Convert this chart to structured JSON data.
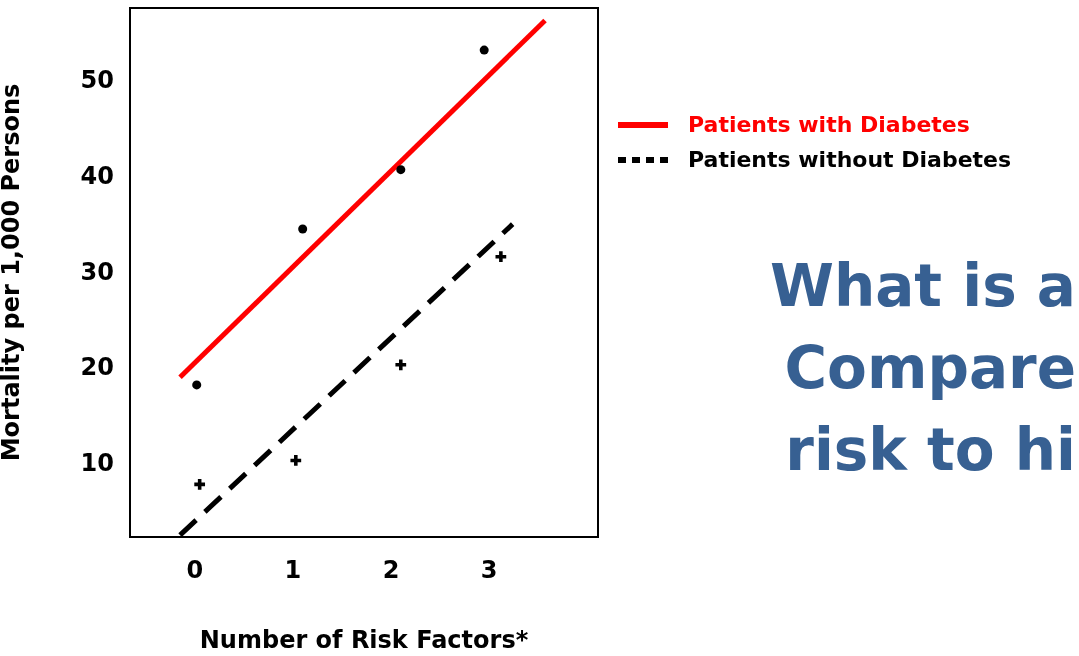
{
  "chart_data": {
    "type": "scatter",
    "xlabel": "Number of Risk Factors*",
    "ylabel": "Mortality per 1,000 Persons",
    "xlim": [
      -0.66,
      4.11
    ],
    "xticks": [
      0,
      1,
      2,
      3
    ],
    "ylim": [
      2.2,
      57.5
    ],
    "yticks": [
      10,
      20,
      30,
      40,
      50
    ],
    "grid": false,
    "legend": "right",
    "series": [
      {
        "name": "Patients with Diabetes",
        "type": "line",
        "color": "#ff0000",
        "marker": "none",
        "line_style": "solid",
        "x": [
          -0.15,
          3.57
        ],
        "values": [
          18.9,
          56.2
        ]
      },
      {
        "name": "Patients without Diabetes",
        "type": "line",
        "color": "#000000",
        "marker": "none",
        "line_style": "dashed",
        "x": [
          -0.15,
          3.24
        ],
        "values": [
          2.4,
          34.9
        ]
      },
      {
        "type": "scatter",
        "color": "#000000",
        "marker": "circle",
        "x": [
          0.02,
          1.1,
          2.1,
          2.95
        ],
        "values": [
          18.1,
          34.4,
          40.6,
          53.1
        ]
      },
      {
        "type": "scatter",
        "color": "#000000",
        "marker": "cross",
        "x": [
          0.05,
          1.03,
          2.1,
          3.12
        ],
        "values": [
          7.7,
          10.2,
          20.2,
          31.5
        ]
      }
    ],
    "annotations": [
      "What is a",
      "Compare",
      "risk to hi"
    ]
  }
}
